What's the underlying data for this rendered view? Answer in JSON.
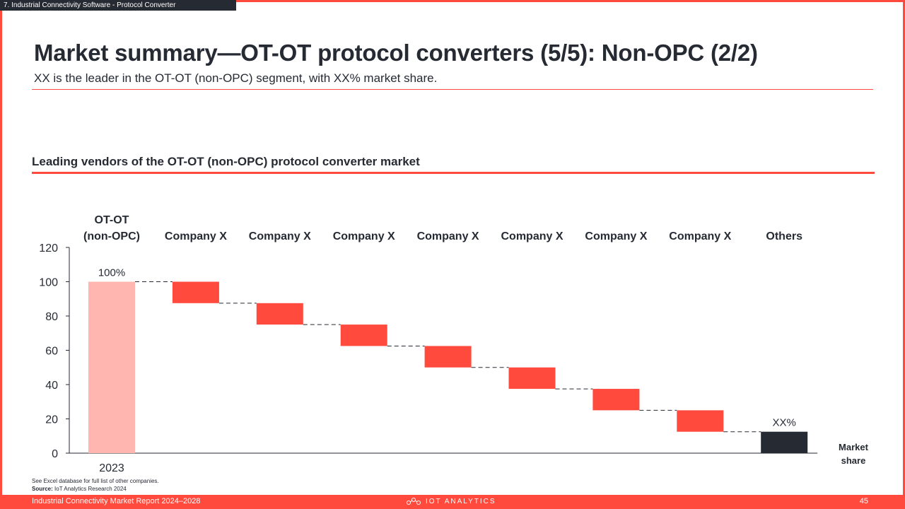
{
  "header": {
    "section_tag": "7. Industrial Connectivity Software - Protocol Converter",
    "title": "Market summary—OT-OT protocol converters (5/5): Non-OPC (2/2)",
    "subtitle": "XX is the leader in the OT-OT (non-OPC) segment, with XX% market share."
  },
  "chart_heading": "Leading vendors of the OT-OT (non-OPC) protocol converter market",
  "chart_data": {
    "type": "waterfall",
    "categories": [
      "OT-OT\n(non-OPC)",
      "Company X",
      "Company X",
      "Company X",
      "Company X",
      "Company X",
      "Company X",
      "Company X",
      "Others"
    ],
    "bars": [
      {
        "from": 0,
        "to": 100,
        "kind": "total"
      },
      {
        "from": 87.5,
        "to": 100,
        "kind": "decrement"
      },
      {
        "from": 75,
        "to": 87.5,
        "kind": "decrement"
      },
      {
        "from": 62.5,
        "to": 75,
        "kind": "decrement"
      },
      {
        "from": 50,
        "to": 62.5,
        "kind": "decrement"
      },
      {
        "from": 37.5,
        "to": 50,
        "kind": "decrement"
      },
      {
        "from": 25,
        "to": 37.5,
        "kind": "decrement"
      },
      {
        "from": 12.5,
        "to": 25,
        "kind": "decrement"
      },
      {
        "from": 0,
        "to": 12.5,
        "kind": "remainder"
      }
    ],
    "data_labels": [
      "100%",
      "",
      "",
      "",
      "",
      "",
      "",
      "",
      "XX%"
    ],
    "x_sublabel": "2023",
    "right_label": "Market\nshare",
    "ylim": [
      0,
      120
    ],
    "yticks": [
      0,
      20,
      40,
      60,
      80,
      100,
      120
    ],
    "colors": {
      "total": "#ffb6b0",
      "decrement": "#ff4a3d",
      "remainder": "#262a33",
      "axis": "#262a33"
    },
    "grid": false,
    "connectors": "dashed"
  },
  "notes": {
    "line1": "See Excel database for full list of other companies.",
    "source_label": "Source:",
    "source_text": "IoT Analytics Research 2024"
  },
  "footer": {
    "left": "Industrial Connectivity Market Report 2024–2028",
    "center": "IOT ANALYTICS",
    "page": "45"
  }
}
